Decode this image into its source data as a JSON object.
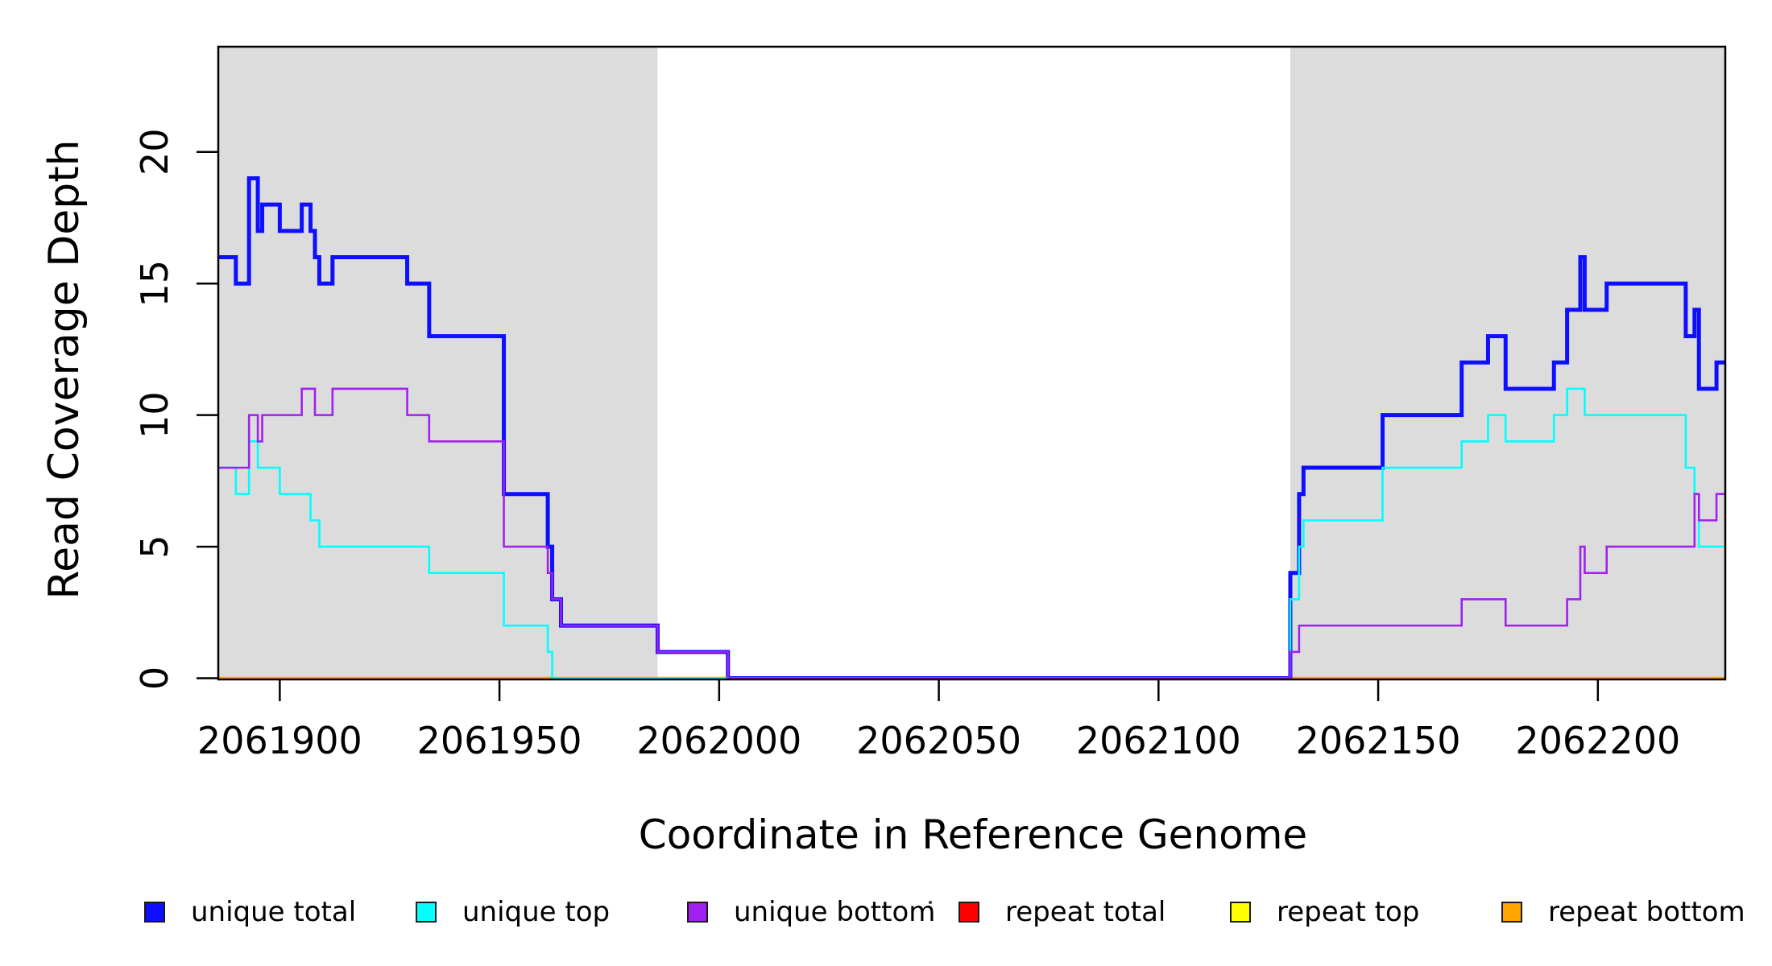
{
  "figure": {
    "background": "#FFFFFF"
  },
  "chart_data": {
    "type": "line",
    "subtype": "step-after",
    "title": "",
    "xlabel": "Coordinate in Reference Genome",
    "ylabel": "Read Coverage Depth",
    "xlim": [
      2061886,
      2062229
    ],
    "ylim": [
      0,
      24
    ],
    "grid": false,
    "legend_position": "bottom",
    "x_ticks": [
      2061900,
      2061950,
      2062000,
      2062050,
      2062100,
      2062150,
      2062200
    ],
    "x_tick_labels": [
      "2061900",
      "2061950",
      "2062000",
      "2062050",
      "2062100",
      "2062150",
      "2062200"
    ],
    "y_ticks": [
      0,
      5,
      10,
      15,
      20
    ],
    "y_tick_labels": [
      "0",
      "5",
      "10",
      "15",
      "20"
    ],
    "colors": {
      "shade": "#DCDCDC",
      "axis": "#000000"
    },
    "shaded_regions": [
      {
        "from": 2061886,
        "to": 2061986
      },
      {
        "from": 2062130,
        "to": 2062229
      }
    ],
    "series": [
      {
        "id": "repeat-total",
        "name": "repeat total",
        "color": "#FF0000",
        "line_width": 3,
        "steps": [
          [
            2061886,
            0
          ]
        ]
      },
      {
        "id": "repeat-top",
        "name": "repeat top",
        "color": "#FFFF00",
        "line_width": 3,
        "steps": [
          [
            2061886,
            0
          ]
        ]
      },
      {
        "id": "repeat-bottom",
        "name": "repeat bottom",
        "color": "#FFA500",
        "line_width": 3.4,
        "steps": [
          [
            2061886,
            0
          ]
        ]
      },
      {
        "id": "unique-total",
        "name": "unique total",
        "color": "#0F0FFF",
        "line_width": 5,
        "steps": [
          [
            2061886,
            16
          ],
          [
            2061890,
            15
          ],
          [
            2061893,
            19
          ],
          [
            2061895,
            17
          ],
          [
            2061896,
            18
          ],
          [
            2061900,
            17
          ],
          [
            2061905,
            18
          ],
          [
            2061907,
            17
          ],
          [
            2061908,
            16
          ],
          [
            2061909,
            15
          ],
          [
            2061912,
            16
          ],
          [
            2061929,
            15
          ],
          [
            2061934,
            13
          ],
          [
            2061951,
            7
          ],
          [
            2061961,
            5
          ],
          [
            2061962,
            3
          ],
          [
            2061964,
            2
          ],
          [
            2061986,
            1
          ],
          [
            2062002,
            0
          ],
          [
            2062130,
            4
          ],
          [
            2062132,
            7
          ],
          [
            2062133,
            8
          ],
          [
            2062151,
            10
          ],
          [
            2062169,
            12
          ],
          [
            2062175,
            13
          ],
          [
            2062179,
            11
          ],
          [
            2062190,
            12
          ],
          [
            2062193,
            14
          ],
          [
            2062196,
            16
          ],
          [
            2062197,
            14
          ],
          [
            2062202,
            15
          ],
          [
            2062220,
            13
          ],
          [
            2062222,
            14
          ],
          [
            2062223,
            11
          ],
          [
            2062227,
            12
          ]
        ]
      },
      {
        "id": "unique-top",
        "name": "unique top",
        "color": "#00FFFF",
        "line_width": 2.6,
        "steps": [
          [
            2061886,
            8
          ],
          [
            2061890,
            7
          ],
          [
            2061893,
            9
          ],
          [
            2061895,
            8
          ],
          [
            2061900,
            7
          ],
          [
            2061907,
            6
          ],
          [
            2061909,
            5
          ],
          [
            2061934,
            4
          ],
          [
            2061951,
            2
          ],
          [
            2061961,
            1
          ],
          [
            2061962,
            0
          ],
          [
            2062130,
            3
          ],
          [
            2062132,
            5
          ],
          [
            2062133,
            6
          ],
          [
            2062151,
            8
          ],
          [
            2062169,
            9
          ],
          [
            2062175,
            10
          ],
          [
            2062179,
            9
          ],
          [
            2062190,
            10
          ],
          [
            2062193,
            11
          ],
          [
            2062197,
            10
          ],
          [
            2062220,
            8
          ],
          [
            2062222,
            7
          ],
          [
            2062223,
            5
          ]
        ]
      },
      {
        "id": "unique-bottom",
        "name": "unique bottom",
        "color": "#A020F0",
        "line_width": 2.6,
        "steps": [
          [
            2061886,
            8
          ],
          [
            2061893,
            10
          ],
          [
            2061895,
            9
          ],
          [
            2061896,
            10
          ],
          [
            2061905,
            11
          ],
          [
            2061908,
            10
          ],
          [
            2061912,
            11
          ],
          [
            2061929,
            10
          ],
          [
            2061934,
            9
          ],
          [
            2061951,
            5
          ],
          [
            2061961,
            4
          ],
          [
            2061962,
            3
          ],
          [
            2061964,
            2
          ],
          [
            2061986,
            1
          ],
          [
            2062002,
            0
          ],
          [
            2062130,
            1
          ],
          [
            2062132,
            2
          ],
          [
            2062169,
            3
          ],
          [
            2062179,
            2
          ],
          [
            2062193,
            3
          ],
          [
            2062196,
            5
          ],
          [
            2062197,
            4
          ],
          [
            2062202,
            5
          ],
          [
            2062222,
            7
          ],
          [
            2062223,
            6
          ],
          [
            2062227,
            7
          ]
        ]
      }
    ]
  },
  "legend": {
    "items": [
      {
        "id": "unique-total",
        "label": "unique total",
        "color": "#0F0FFF"
      },
      {
        "id": "unique-top",
        "label": "unique top",
        "color": "#00FFFF"
      },
      {
        "id": "unique-bottom",
        "label": "unique bottom",
        "color": "#A020F0"
      },
      {
        "id": "repeat-total",
        "label": "repeat total",
        "color": "#FF0000"
      },
      {
        "id": "repeat-top",
        "label": "repeat top",
        "color": "#FFFF00"
      },
      {
        "id": "repeat-bottom",
        "label": "repeat bottom",
        "color": "#FFA500"
      }
    ]
  }
}
